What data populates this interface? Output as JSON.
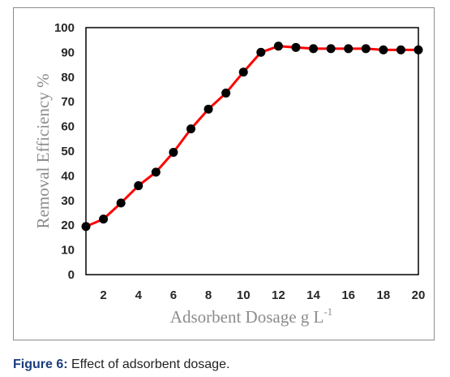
{
  "chart_data": {
    "type": "line",
    "title": "",
    "xlabel": "Adsorbent Dosage g L",
    "xlabel_superscript": "-1",
    "ylabel": "Removal Efficiency  %",
    "xlim": [
      1,
      20
    ],
    "ylim": [
      0,
      100
    ],
    "x_ticks": [
      2,
      4,
      6,
      8,
      10,
      12,
      14,
      16,
      18,
      20
    ],
    "y_ticks": [
      0,
      10,
      20,
      30,
      40,
      50,
      60,
      70,
      80,
      90,
      100
    ],
    "grid": false,
    "line_color": "#ff0000",
    "marker_color": "#000000",
    "x": [
      1,
      2,
      3,
      4,
      5,
      6,
      7,
      8,
      9,
      10,
      11,
      12,
      13,
      14,
      15,
      16,
      17,
      18,
      19,
      20
    ],
    "values": [
      19.5,
      22.5,
      29,
      36,
      41.5,
      49.5,
      59,
      67,
      73.5,
      82,
      90,
      92.5,
      92,
      91.5,
      91.5,
      91.5,
      91.5,
      91,
      91,
      91
    ]
  },
  "caption": {
    "label": "Figure 6:",
    "text": " Effect of adsorbent dosage."
  }
}
